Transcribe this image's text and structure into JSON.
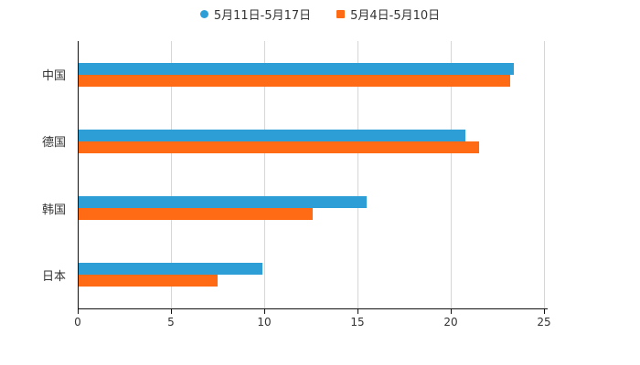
{
  "chart_data": {
    "type": "bar",
    "orientation": "horizontal",
    "title": "",
    "xlabel": "",
    "ylabel": "",
    "categories": [
      "中国",
      "德国",
      "韩国",
      "日本"
    ],
    "series": [
      {
        "name": "5月11日-5月17日",
        "color": "#2E9FD6",
        "marker": "circle",
        "values": [
          23.4,
          20.8,
          15.5,
          9.9
        ]
      },
      {
        "name": "5月4日-5月10日",
        "color": "#FF6A14",
        "marker": "square",
        "values": [
          23.2,
          21.5,
          12.6,
          7.5
        ]
      }
    ],
    "x_ticks": [
      "0",
      "5",
      "10",
      "15",
      "20",
      "25"
    ],
    "xlim": [
      0,
      25
    ],
    "grid": true,
    "legend_position": "top"
  },
  "colors": {
    "background": "#ffffff",
    "axis": "#111111",
    "gridline": "#d6d6d6",
    "text": "#333333"
  }
}
